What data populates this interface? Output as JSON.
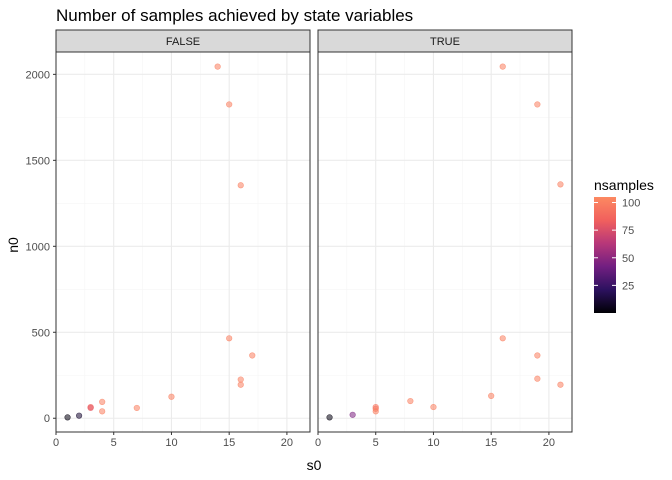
{
  "chart_data": {
    "type": "scatter",
    "title": "Number of samples achieved by state variables",
    "xlabel": "s0",
    "ylabel": "n0",
    "xlim": [
      0,
      22
    ],
    "ylim": [
      -80,
      2130
    ],
    "xticks": [
      0,
      5,
      10,
      15,
      20
    ],
    "yticks": [
      0,
      500,
      1000,
      1500,
      2000
    ],
    "grid": true,
    "panels": [
      {
        "label": "FALSE",
        "points": [
          {
            "x": 1,
            "y": 5,
            "nsamples": 3
          },
          {
            "x": 2,
            "y": 15,
            "nsamples": 10
          },
          {
            "x": 3,
            "y": 65,
            "nsamples": 85
          },
          {
            "x": 3,
            "y": 60,
            "nsamples": 80
          },
          {
            "x": 4,
            "y": 95,
            "nsamples": 100
          },
          {
            "x": 4,
            "y": 40,
            "nsamples": 100
          },
          {
            "x": 7,
            "y": 60,
            "nsamples": 100
          },
          {
            "x": 10,
            "y": 125,
            "nsamples": 100
          },
          {
            "x": 14,
            "y": 2045,
            "nsamples": 100
          },
          {
            "x": 15,
            "y": 1825,
            "nsamples": 100
          },
          {
            "x": 15,
            "y": 465,
            "nsamples": 100
          },
          {
            "x": 16,
            "y": 1355,
            "nsamples": 100
          },
          {
            "x": 16,
            "y": 225,
            "nsamples": 100
          },
          {
            "x": 16,
            "y": 195,
            "nsamples": 100
          },
          {
            "x": 17,
            "y": 365,
            "nsamples": 100
          }
        ]
      },
      {
        "label": "TRUE",
        "points": [
          {
            "x": 1,
            "y": 5,
            "nsamples": 3
          },
          {
            "x": 3,
            "y": 20,
            "nsamples": 45
          },
          {
            "x": 5,
            "y": 65,
            "nsamples": 95
          },
          {
            "x": 5,
            "y": 55,
            "nsamples": 95
          },
          {
            "x": 5,
            "y": 40,
            "nsamples": 100
          },
          {
            "x": 8,
            "y": 100,
            "nsamples": 100
          },
          {
            "x": 10,
            "y": 65,
            "nsamples": 100
          },
          {
            "x": 15,
            "y": 130,
            "nsamples": 100
          },
          {
            "x": 16,
            "y": 2045,
            "nsamples": 100
          },
          {
            "x": 16,
            "y": 465,
            "nsamples": 100
          },
          {
            "x": 19,
            "y": 1825,
            "nsamples": 100
          },
          {
            "x": 19,
            "y": 365,
            "nsamples": 100
          },
          {
            "x": 19,
            "y": 230,
            "nsamples": 100
          },
          {
            "x": 21,
            "y": 1360,
            "nsamples": 100
          },
          {
            "x": 21,
            "y": 195,
            "nsamples": 100
          }
        ]
      }
    ],
    "legend": {
      "title": "nsamples",
      "placement": "right",
      "breaks": [
        25,
        50,
        75,
        100
      ],
      "range": [
        0,
        105
      ],
      "colors": [
        "#000004",
        "#2c115f",
        "#721f81",
        "#b73779",
        "#f1605d",
        "#fc8961"
      ]
    },
    "colors": {
      "panel_border": "#333333",
      "strip_fill": "#d9d9d9",
      "grid_major": "#ebebeb",
      "grid_minor": "#f5f5f5",
      "point_opacity": 0.55
    }
  }
}
